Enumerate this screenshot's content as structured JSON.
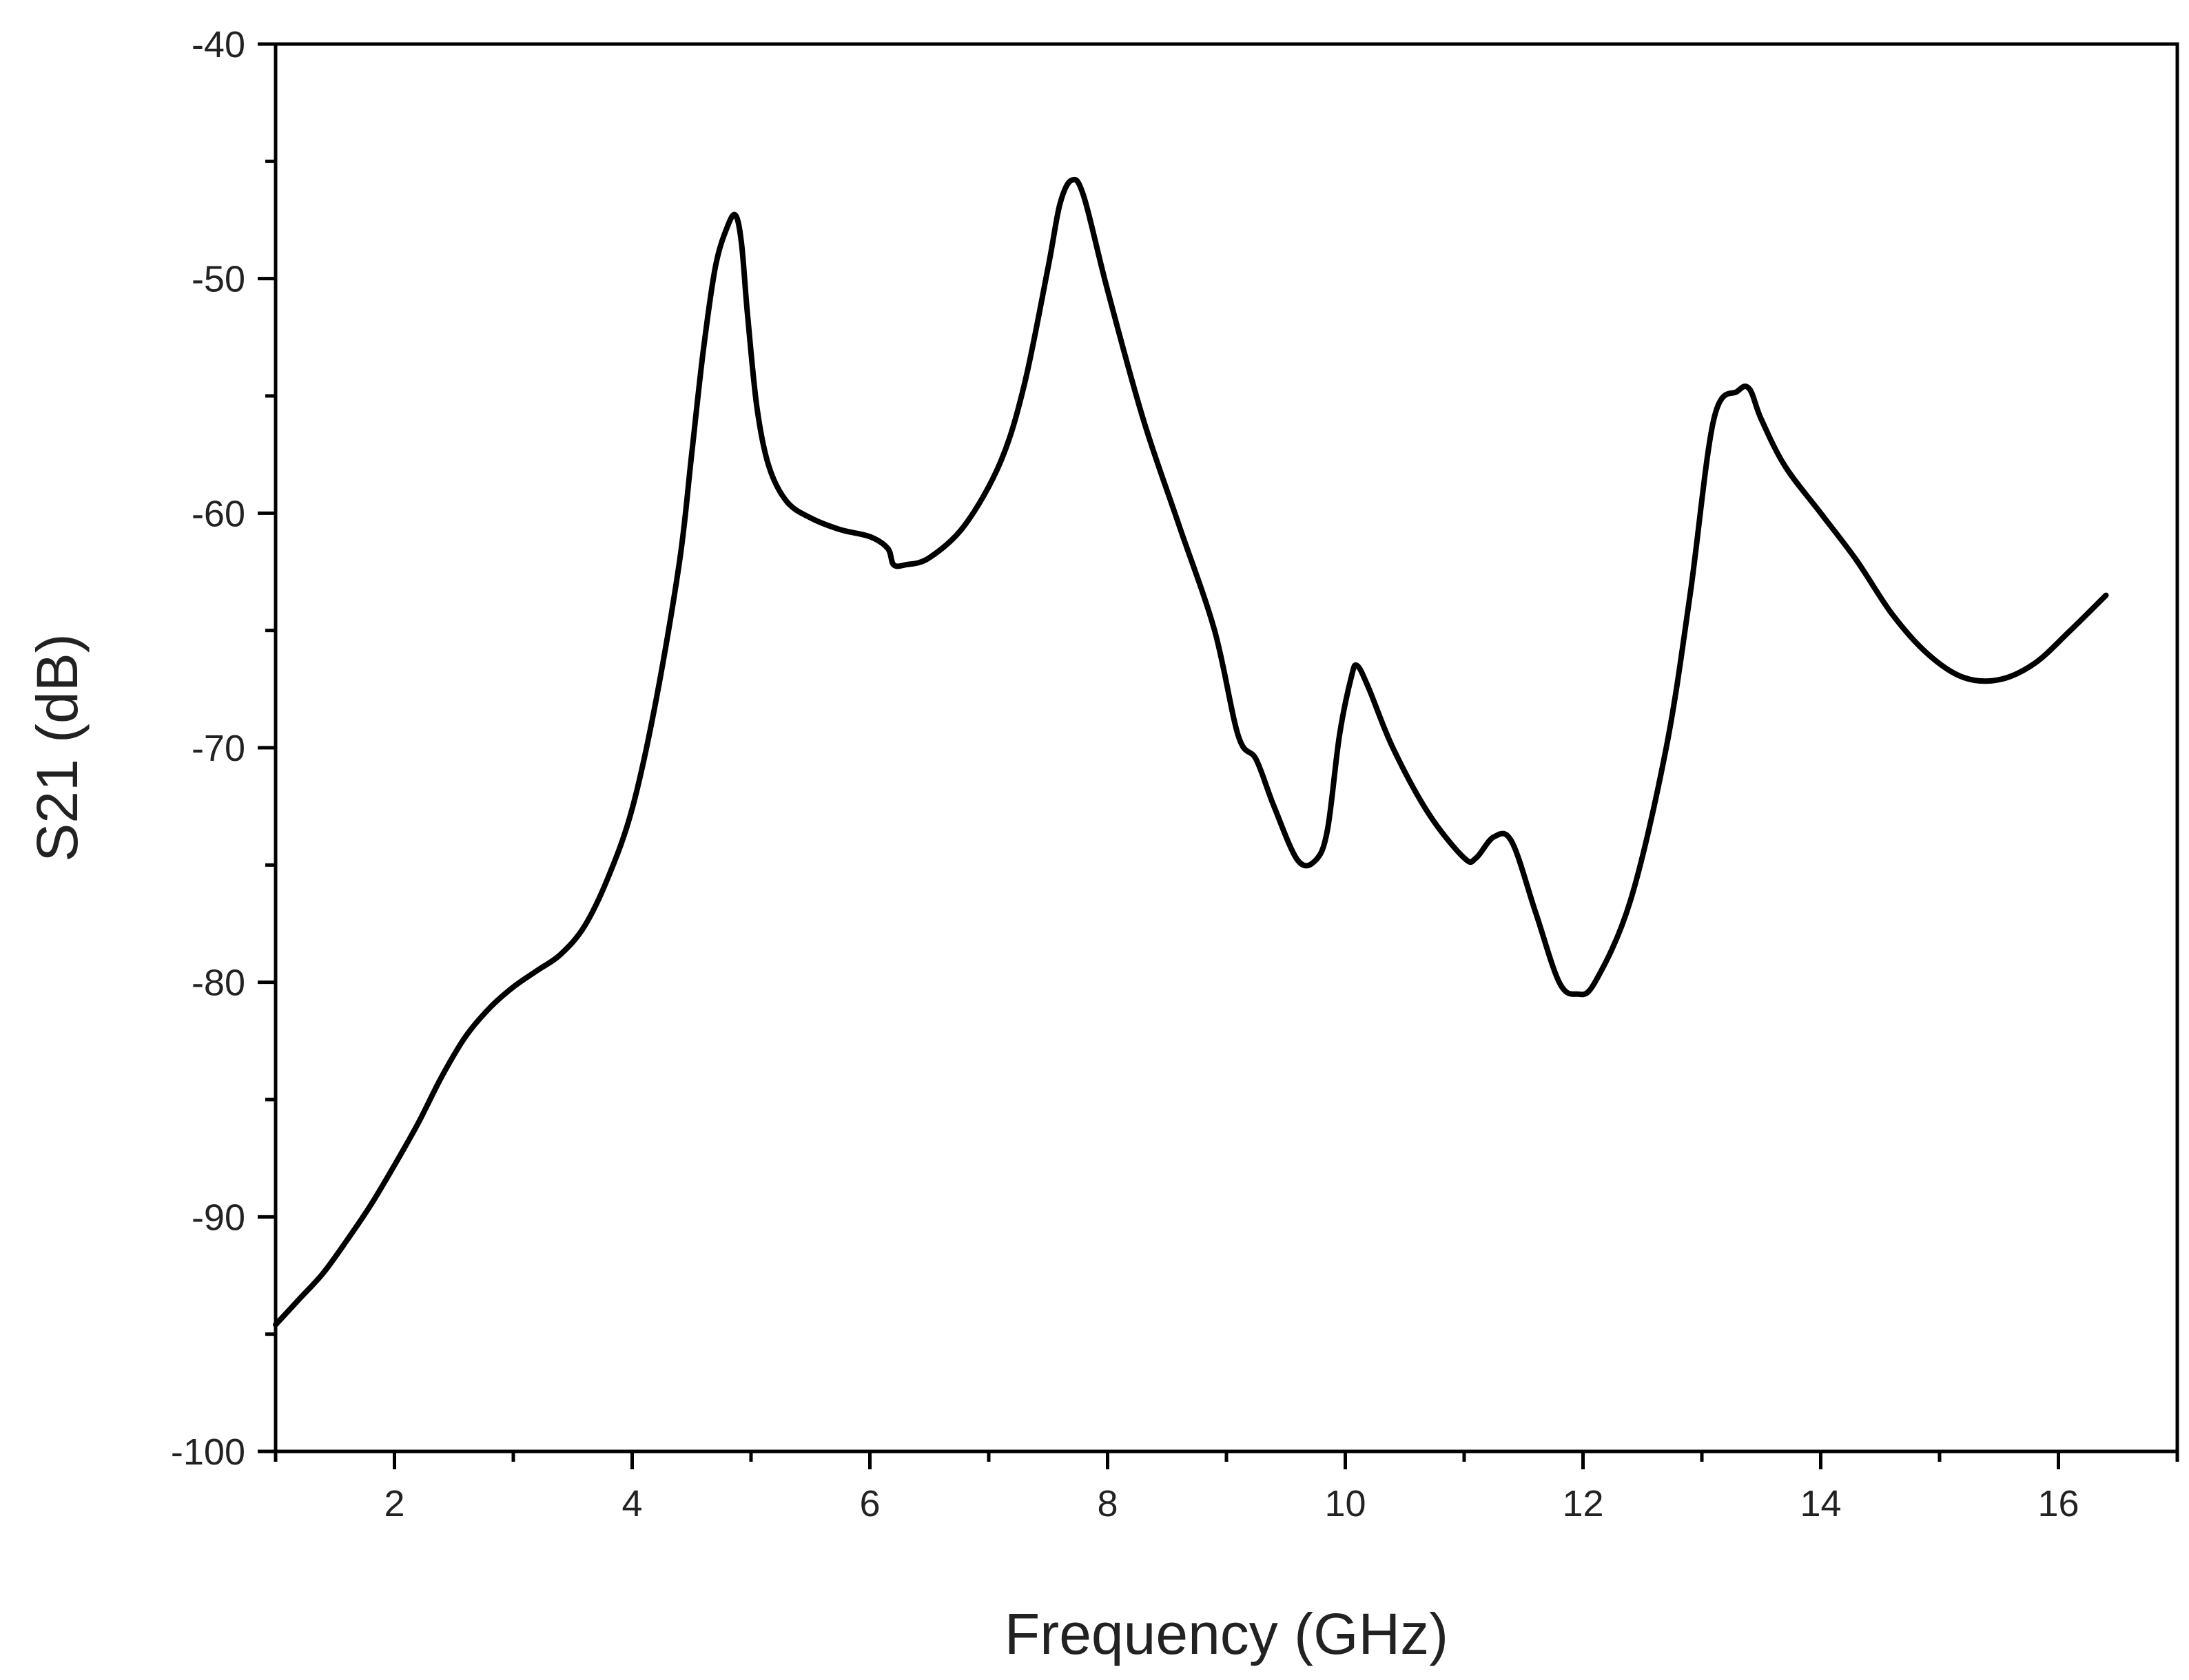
{
  "chart_data": {
    "type": "line",
    "title": "",
    "xlabel": "Frequency (GHz)",
    "ylabel": "S21 (dB)",
    "xlim": [
      1,
      17
    ],
    "ylim": [
      -100,
      -40
    ],
    "x_ticks": [
      2,
      4,
      6,
      8,
      10,
      12,
      14,
      16
    ],
    "x_tick_labels": [
      "2",
      "4",
      "6",
      "8",
      "10",
      "12",
      "14",
      "16"
    ],
    "y_ticks": [
      -100,
      -90,
      -80,
      -70,
      -60,
      -50,
      -40
    ],
    "y_tick_labels": [
      "-100",
      "-90",
      "-80",
      "-70",
      "-60",
      "-50",
      "-40"
    ],
    "x_minor_ticks": [
      1,
      3,
      5,
      7,
      9,
      11,
      13,
      15,
      17
    ],
    "y_minor_ticks": [
      -95,
      -85,
      -75,
      -65,
      -55,
      -45
    ],
    "grid": false,
    "legend": "none",
    "line_color": "#000000",
    "series": [
      {
        "x": [
          1.0,
          1.2,
          1.4,
          1.6,
          1.8,
          2.0,
          2.2,
          2.4,
          2.6,
          2.8,
          3.0,
          3.2,
          3.4,
          3.6,
          3.8,
          4.0,
          4.2,
          4.4,
          4.5,
          4.6,
          4.7,
          4.8,
          4.87,
          4.92,
          4.97,
          5.05,
          5.15,
          5.3,
          5.5,
          5.75,
          6.0,
          6.15,
          6.2,
          6.3,
          6.5,
          6.8,
          7.1,
          7.3,
          7.5,
          7.6,
          7.7,
          7.8,
          8.0,
          8.3,
          8.6,
          8.9,
          9.1,
          9.25,
          9.4,
          9.6,
          9.75,
          9.85,
          9.95,
          10.05,
          10.1,
          10.2,
          10.4,
          10.7,
          11.0,
          11.1,
          11.25,
          11.4,
          11.6,
          11.8,
          11.95,
          12.1,
          12.4,
          12.7,
          12.9,
          13.1,
          13.3,
          13.4,
          13.5,
          13.7,
          14.0,
          14.3,
          14.6,
          14.9,
          15.2,
          15.5,
          15.8,
          16.1,
          16.4
        ],
        "y": [
          -94.6,
          -93.5,
          -92.4,
          -91.0,
          -89.5,
          -87.8,
          -86.0,
          -84.0,
          -82.3,
          -81.1,
          -80.2,
          -79.5,
          -78.8,
          -77.6,
          -75.5,
          -72.6,
          -68.0,
          -62.0,
          -57.5,
          -53.0,
          -49.5,
          -47.8,
          -47.3,
          -48.5,
          -51.5,
          -55.5,
          -58.0,
          -59.5,
          -60.2,
          -60.7,
          -61.0,
          -61.5,
          -62.2,
          -62.2,
          -61.9,
          -60.5,
          -57.8,
          -54.5,
          -49.5,
          -46.8,
          -45.8,
          -46.5,
          -50.5,
          -56.0,
          -60.5,
          -65.0,
          -69.5,
          -70.5,
          -72.5,
          -74.8,
          -74.8,
          -73.5,
          -69.5,
          -67.0,
          -66.5,
          -67.5,
          -70.0,
          -72.8,
          -74.7,
          -74.7,
          -73.8,
          -74.0,
          -77.0,
          -80.0,
          -80.5,
          -80.0,
          -76.5,
          -70.0,
          -63.5,
          -56.0,
          -54.8,
          -54.7,
          -56.0,
          -58.0,
          -60.0,
          -62.0,
          -64.3,
          -66.0,
          -67.0,
          -67.1,
          -66.4,
          -65.0,
          -63.5
        ]
      }
    ]
  }
}
